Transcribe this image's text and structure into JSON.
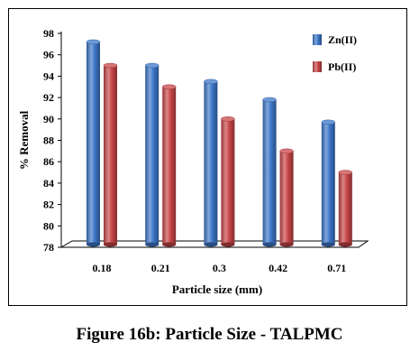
{
  "caption": "Figure 16b: Particle Size - TALPMC",
  "chart_data": {
    "type": "bar",
    "style": "3d-cylinder",
    "categories": [
      "0.18",
      "0.21",
      "0.3",
      "0.42",
      "0.71"
    ],
    "series": [
      {
        "name": "Zn(II)",
        "values": [
          97.2,
          95.0,
          93.5,
          91.8,
          89.7
        ],
        "color": "#3d77c9"
      },
      {
        "name": "Pb(II)",
        "values": [
          95.0,
          93.0,
          90.0,
          87.0,
          85.0
        ],
        "color": "#c84548"
      }
    ],
    "xlabel": "Particle size (mm)",
    "ylabel": "% Removal",
    "ylim": [
      78,
      98
    ],
    "yticks": [
      "78",
      "80",
      "82",
      "84",
      "86",
      "88",
      "90",
      "92",
      "94",
      "96",
      "98"
    ],
    "grid": false,
    "legend_position": "top-right"
  }
}
